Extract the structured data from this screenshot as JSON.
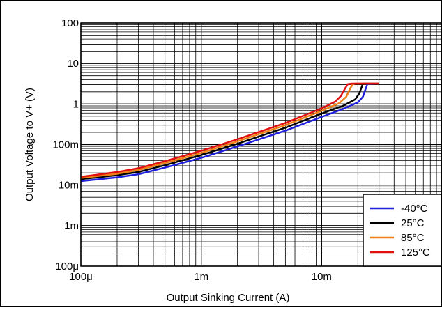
{
  "chart_data": {
    "type": "line",
    "xlabel": "Output Sinking Current (A)",
    "ylabel": "Output Voltage to V+ (V)",
    "x_scale": "log",
    "y_scale": "log",
    "xlim": [
      0.0001,
      0.1
    ],
    "ylim": [
      0.0001,
      100
    ],
    "grid": true,
    "legend_position": "bottom-right",
    "x_ticks": [
      {
        "value": 0.0001,
        "label": "100μ"
      },
      {
        "value": 0.001,
        "label": "1m"
      },
      {
        "value": 0.01,
        "label": "10m"
      }
    ],
    "y_ticks": [
      {
        "value": 0.0001,
        "label": "100μ"
      },
      {
        "value": 0.001,
        "label": "1m"
      },
      {
        "value": 0.01,
        "label": "10m"
      },
      {
        "value": 0.1,
        "label": "100m"
      },
      {
        "value": 1,
        "label": "1"
      },
      {
        "value": 10,
        "label": "10"
      },
      {
        "value": 100,
        "label": "100"
      }
    ],
    "series": [
      {
        "name": "-40°C",
        "color": "#1f1fdc",
        "points": [
          [
            0.0001,
            0.0125
          ],
          [
            0.0002,
            0.0155
          ],
          [
            0.0003,
            0.0185
          ],
          [
            0.0005,
            0.027
          ],
          [
            0.001,
            0.047
          ],
          [
            0.002,
            0.09
          ],
          [
            0.005,
            0.22
          ],
          [
            0.01,
            0.48
          ],
          [
            0.015,
            0.75
          ],
          [
            0.02,
            1.1
          ],
          [
            0.022,
            1.5
          ],
          [
            0.023,
            2.2
          ],
          [
            0.024,
            3.1
          ],
          [
            0.03,
            3.2
          ]
        ]
      },
      {
        "name": "25°C",
        "color": "#000000",
        "points": [
          [
            0.0001,
            0.014
          ],
          [
            0.0002,
            0.0175
          ],
          [
            0.0003,
            0.021
          ],
          [
            0.0005,
            0.031
          ],
          [
            0.001,
            0.055
          ],
          [
            0.002,
            0.105
          ],
          [
            0.005,
            0.26
          ],
          [
            0.01,
            0.58
          ],
          [
            0.015,
            0.9
          ],
          [
            0.019,
            1.3
          ],
          [
            0.0205,
            1.8
          ],
          [
            0.0215,
            2.6
          ],
          [
            0.022,
            3.2
          ],
          [
            0.03,
            3.2
          ]
        ]
      },
      {
        "name": "85°C",
        "color": "#f07f13",
        "points": [
          [
            0.0001,
            0.015
          ],
          [
            0.0002,
            0.019
          ],
          [
            0.0003,
            0.0235
          ],
          [
            0.0005,
            0.035
          ],
          [
            0.001,
            0.062
          ],
          [
            0.002,
            0.12
          ],
          [
            0.005,
            0.3
          ],
          [
            0.01,
            0.68
          ],
          [
            0.014,
            1.05
          ],
          [
            0.016,
            1.5
          ],
          [
            0.017,
            2.2
          ],
          [
            0.018,
            3.0
          ],
          [
            0.019,
            3.2
          ],
          [
            0.03,
            3.2
          ]
        ]
      },
      {
        "name": "125°C",
        "color": "#e01010",
        "points": [
          [
            0.0001,
            0.016
          ],
          [
            0.0002,
            0.021
          ],
          [
            0.0003,
            0.026
          ],
          [
            0.0005,
            0.039
          ],
          [
            0.001,
            0.07
          ],
          [
            0.002,
            0.135
          ],
          [
            0.005,
            0.34
          ],
          [
            0.01,
            0.78
          ],
          [
            0.013,
            1.15
          ],
          [
            0.0145,
            1.6
          ],
          [
            0.0155,
            2.3
          ],
          [
            0.0165,
            3.1
          ],
          [
            0.018,
            3.2
          ],
          [
            0.03,
            3.2
          ]
        ]
      }
    ]
  }
}
